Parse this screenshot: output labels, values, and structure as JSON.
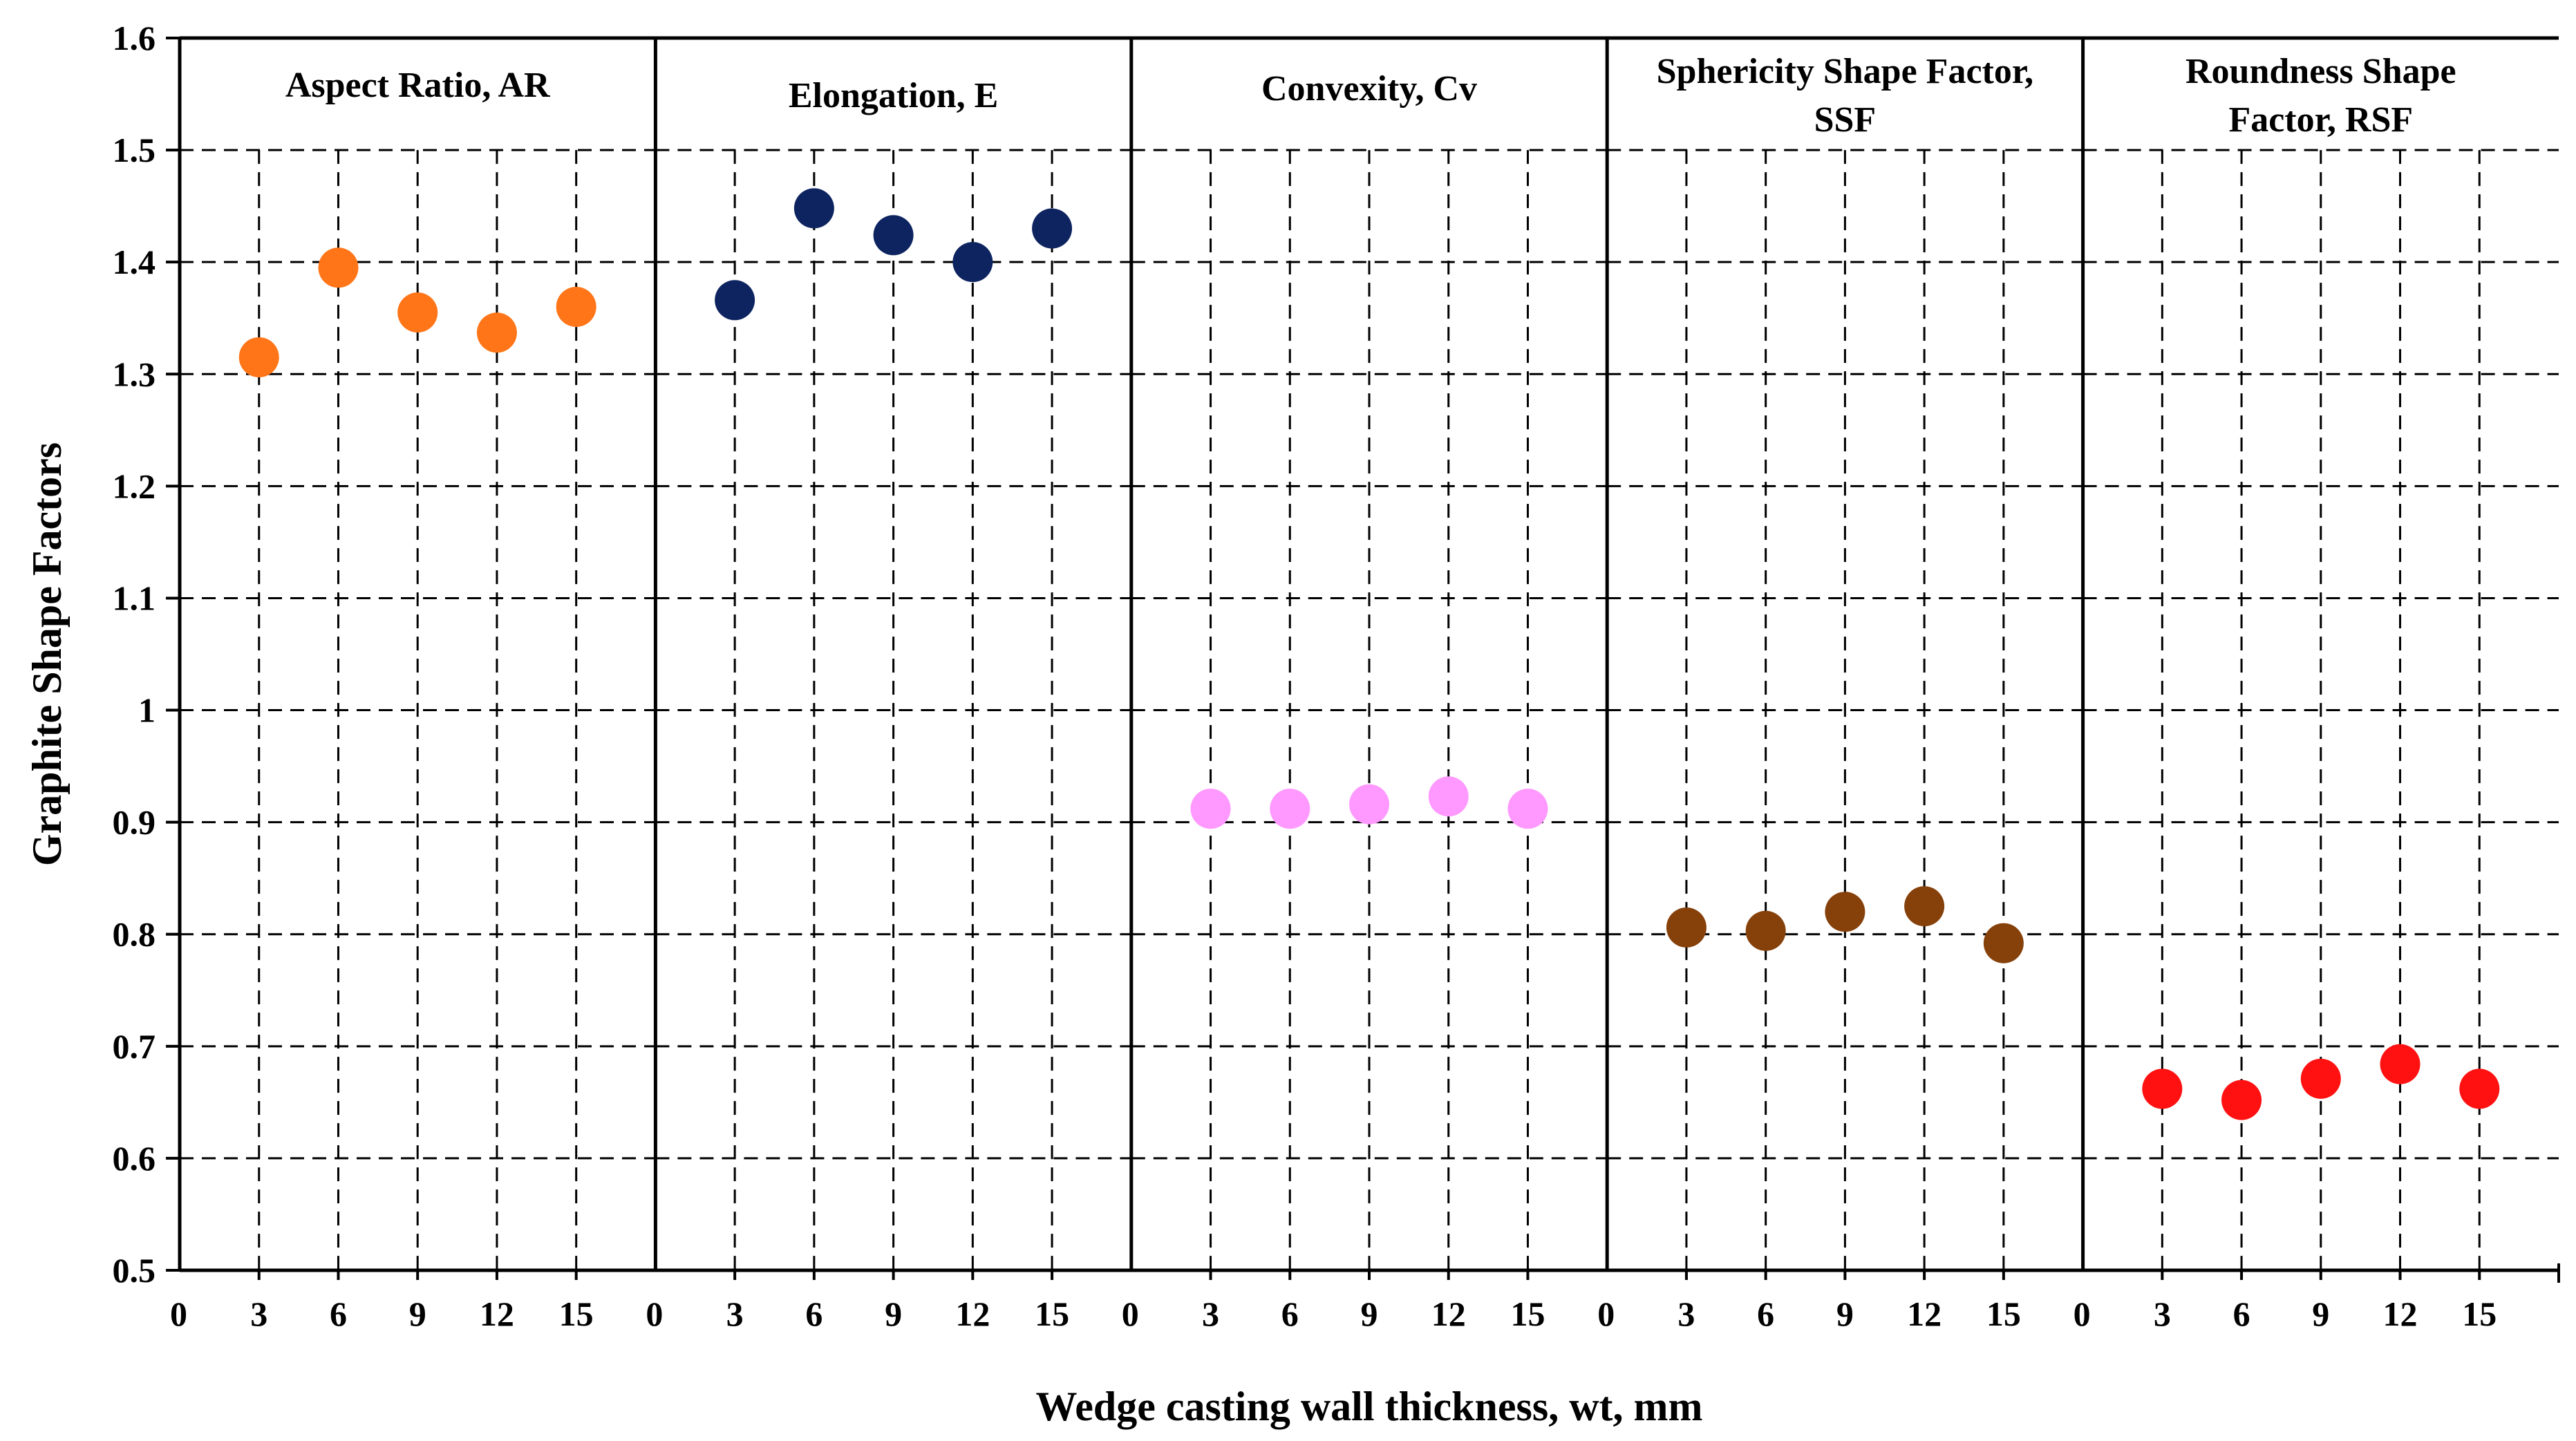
{
  "chart_data": {
    "type": "scatter",
    "ylabel": "Graphite Shape Factors",
    "xlabel": "Wedge casting wall thickness, wt, mm",
    "ylim": [
      0.5,
      1.6
    ],
    "yticks": [
      0.5,
      0.6,
      0.7,
      0.8,
      0.9,
      1,
      1.1,
      1.2,
      1.3,
      1.4,
      1.5,
      1.6
    ],
    "ytick_labels": [
      "0.5",
      "0.6",
      "0.7",
      "0.8",
      "0.9",
      "1",
      "1.1",
      "1.2",
      "1.3",
      "1.4",
      "1.5",
      "1.6"
    ],
    "xlim": [
      0,
      18
    ],
    "xticks": [
      0,
      3,
      6,
      9,
      12,
      15
    ],
    "xtick_labels": [
      "0",
      "3",
      "6",
      "9",
      "12",
      "15"
    ],
    "grid": true,
    "panels": [
      {
        "title_lines": [
          "Aspect Ratio, AR"
        ],
        "color": "#FF7518",
        "x": [
          3,
          6,
          9,
          12,
          15
        ],
        "y": [
          1.315,
          1.395,
          1.355,
          1.337,
          1.36
        ]
      },
      {
        "title_lines": [
          "Elongation, E"
        ],
        "color": "#0D2460",
        "x": [
          3,
          6,
          9,
          12,
          15
        ],
        "y": [
          1.366,
          1.448,
          1.424,
          1.4,
          1.43
        ]
      },
      {
        "title_lines": [
          "Convexity, Cv"
        ],
        "color": "#FF99FF",
        "x": [
          3,
          6,
          9,
          12,
          15
        ],
        "y": [
          0.912,
          0.912,
          0.916,
          0.923,
          0.912
        ]
      },
      {
        "title_lines": [
          "Sphericity Shape Factor,",
          "SSF"
        ],
        "color": "#86400A",
        "x": [
          3,
          6,
          9,
          12,
          15
        ],
        "y": [
          0.806,
          0.803,
          0.82,
          0.825,
          0.792
        ]
      },
      {
        "title_lines": [
          "Roundness Shape",
          "Factor, RSF"
        ],
        "color": "#FF1111",
        "x": [
          3,
          6,
          9,
          12,
          15
        ],
        "y": [
          0.662,
          0.652,
          0.671,
          0.684,
          0.662
        ]
      }
    ]
  }
}
